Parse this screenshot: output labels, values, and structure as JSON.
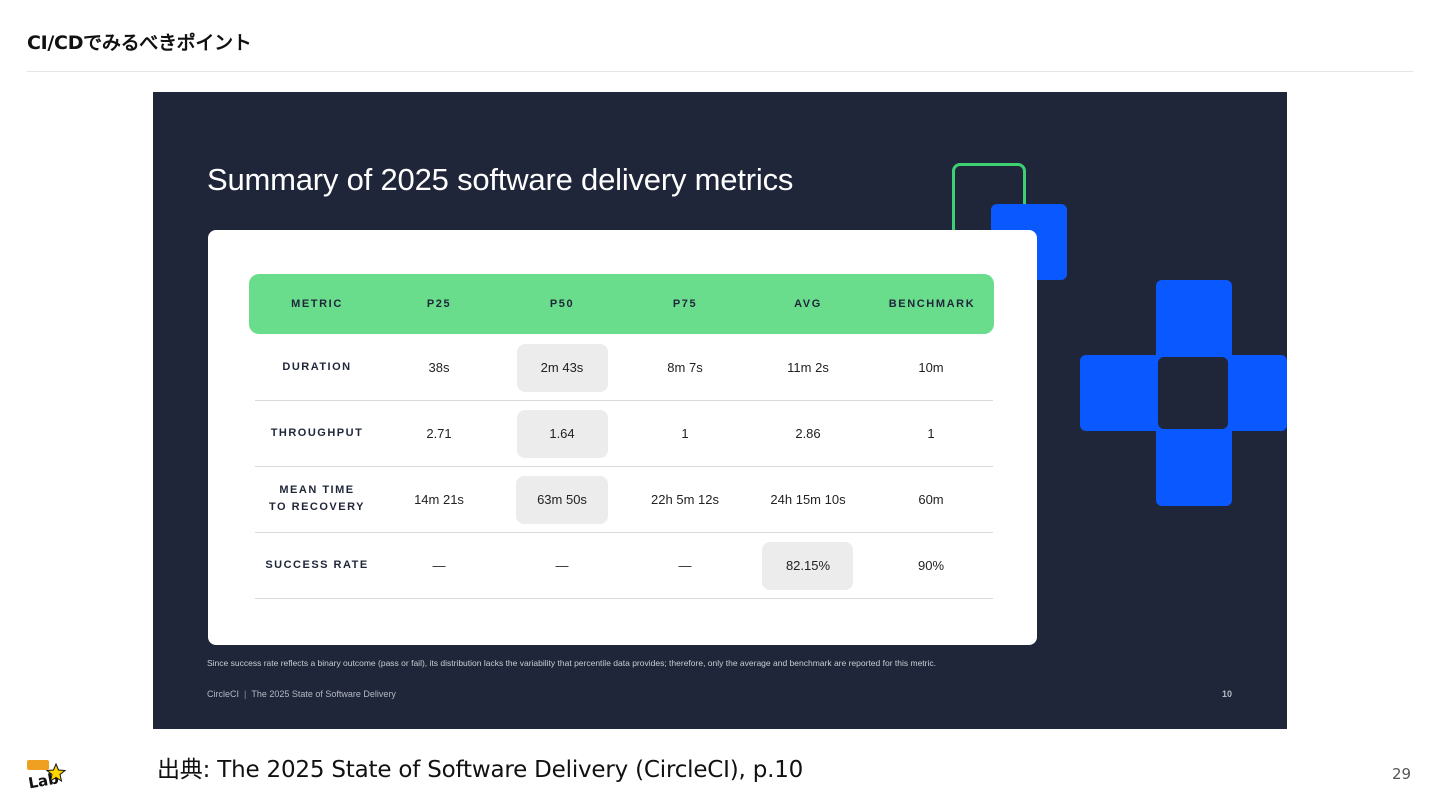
{
  "slide": {
    "title": "CI/CDでみるべきポイント",
    "source_citation": "出典: The 2025 State of Software Delivery (CircleCI), p.10",
    "page_number": "29",
    "logo_text": "Lab"
  },
  "embedded_slide": {
    "heading": "Summary of 2025 software delivery metrics",
    "columns": [
      "METRIC",
      "P25",
      "P50",
      "P75",
      "AVG",
      "BENCHMARK"
    ],
    "rows": [
      {
        "metric": "DURATION",
        "p25": "38s",
        "p50": "2m 43s",
        "p75": "8m 7s",
        "avg": "11m 2s",
        "benchmark": "10m"
      },
      {
        "metric": "THROUGHPUT",
        "p25": "2.71",
        "p50": "1.64",
        "p75": "1",
        "avg": "2.86",
        "benchmark": "1"
      },
      {
        "metric": "MEAN TIME\nTO RECOVERY",
        "p25": "14m 21s",
        "p50": "63m 50s",
        "p75": "22h 5m 12s",
        "avg": "24h 15m 10s",
        "benchmark": "60m"
      },
      {
        "metric": "SUCCESS RATE",
        "p25": "—",
        "p50": "—",
        "p75": "—",
        "avg": "82.15%",
        "benchmark": "90%"
      }
    ],
    "footnote": "Since success rate reflects a binary outcome (pass or fail), its distribution lacks the variability that percentile data provides; therefore, only the average and benchmark are reported for this metric.",
    "footer_brand": "CircleCI",
    "footer_report": "The 2025 State of Software Delivery",
    "footer_page": "10"
  },
  "colors": {
    "embed_background": "#1f2639",
    "header_green": "#6add8d",
    "accent_blue": "#0a58ff",
    "outline_green": "#3ecf73",
    "highlight_gray": "#ececec"
  }
}
